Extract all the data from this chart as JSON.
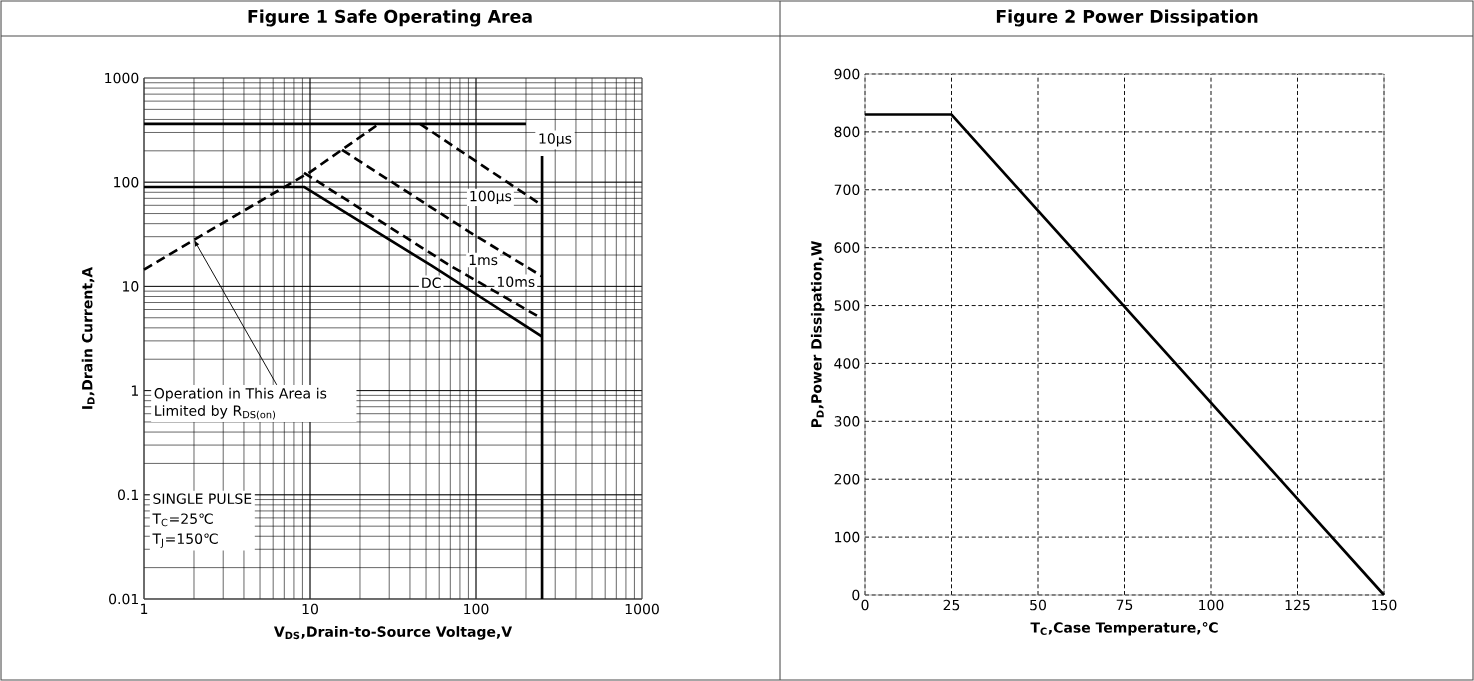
{
  "chart_data": [
    {
      "type": "line",
      "title": "Figure 1 Safe Operating Area",
      "xlabel": "V$_{DS}$,Drain-to-Source Voltage,V",
      "ylabel": "I$_{D}$,Drain Current,A",
      "log": "xy",
      "xlim": [
        1,
        1000
      ],
      "ylim": [
        0.01,
        1000
      ],
      "xticks": [
        1,
        10,
        100,
        1000
      ],
      "yticks": [
        0.01,
        0.1,
        1,
        10,
        100,
        1000
      ],
      "grid": true,
      "series": [
        {
          "name": "10µs",
          "color": "#000000",
          "line_style": "solid",
          "x": [
            1,
            200
          ],
          "values": [
            363,
            363
          ]
        },
        {
          "name": "100µs",
          "color": "#000000",
          "line_style": "dashed",
          "x": [
            46,
            114,
            250
          ],
          "values": [
            363,
            138,
            60
          ]
        },
        {
          "name": "1ms",
          "color": "#000000",
          "line_style": "dashed",
          "x": [
            15.6,
            92,
            250
          ],
          "values": [
            204,
            33,
            12.5
          ]
        },
        {
          "name": "10ms",
          "color": "#000000",
          "line_style": "dashed",
          "x": [
            9.2,
            70,
            250
          ],
          "values": [
            123,
            15.8,
            4.9
          ]
        },
        {
          "name": "DC",
          "color": "#000000",
          "line_style": "solid",
          "x": [
            1,
            9.2,
            54,
            250
          ],
          "values": [
            90,
            90,
            15.8,
            3.3
          ]
        },
        {
          "color": "#000000",
          "line_style": "dashed",
          "x": [
            1,
            2,
            10,
            26
          ],
          "values": [
            14.5,
            28,
            125,
            363
          ]
        },
        {
          "color": "#000000",
          "line_style": "solid",
          "x": [
            250,
            250
          ],
          "values": [
            178,
            0.01
          ]
        }
      ],
      "annotations": [
        {
          "text": "Operation in This Area is Limited by R$_{DS(on)}$",
          "x": 2,
          "y": 28
        },
        "SINGLE PULSE",
        "T$_{C}$=25℃",
        "T$_{J}$=150℃"
      ]
    },
    {
      "type": "line",
      "title": "Figure 2 Power Dissipation",
      "xlabel": "T$_{C}$,Case Temperature,℃",
      "ylabel": "P$_{D}$,Power Dissipation,W",
      "xlim": [
        0,
        150
      ],
      "ylim": [
        0,
        900
      ],
      "xticks": [
        0,
        25,
        50,
        75,
        100,
        125,
        150
      ],
      "yticks": [
        0,
        100,
        200,
        300,
        400,
        500,
        600,
        700,
        800,
        900
      ],
      "grid": true,
      "series": [
        {
          "color": "#000000",
          "line_style": "solid",
          "x": [
            0,
            25,
            150
          ],
          "values": [
            830,
            830,
            0
          ]
        }
      ]
    }
  ]
}
